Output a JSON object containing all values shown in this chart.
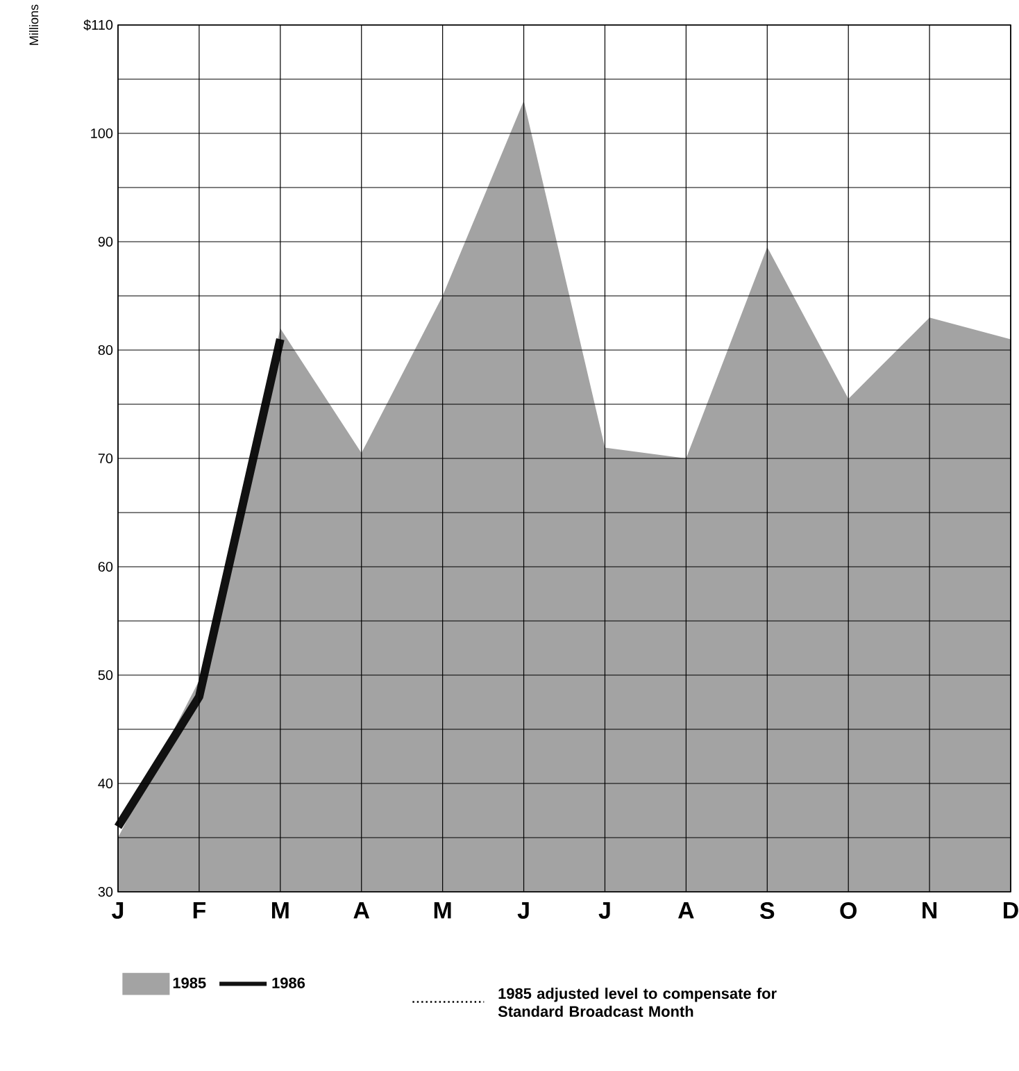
{
  "chart_data": {
    "type": "area",
    "ylabel": "Millions",
    "categories": [
      "J",
      "F",
      "M",
      "A",
      "M",
      "J",
      "J",
      "A",
      "S",
      "O",
      "N",
      "D"
    ],
    "series": [
      {
        "name": "1985",
        "type": "area",
        "color": "#a3a3a3",
        "values": [
          35,
          49.5,
          82,
          70.5,
          85,
          103,
          71,
          70,
          89.5,
          75.5,
          83,
          81
        ]
      },
      {
        "name": "1986",
        "type": "line",
        "color": "#111111",
        "values": [
          36,
          48,
          81,
          null,
          null,
          null,
          null,
          null,
          null,
          null,
          null,
          null
        ]
      }
    ],
    "ylim": [
      30,
      110
    ],
    "yticks": [
      30,
      40,
      50,
      60,
      70,
      80,
      90,
      100,
      {
        "value": 110,
        "label": "$110"
      }
    ],
    "grid": true,
    "legend": "bottom",
    "annotations": [
      "1985 adjusted level to compensate for Standard Broadcast Month"
    ]
  }
}
